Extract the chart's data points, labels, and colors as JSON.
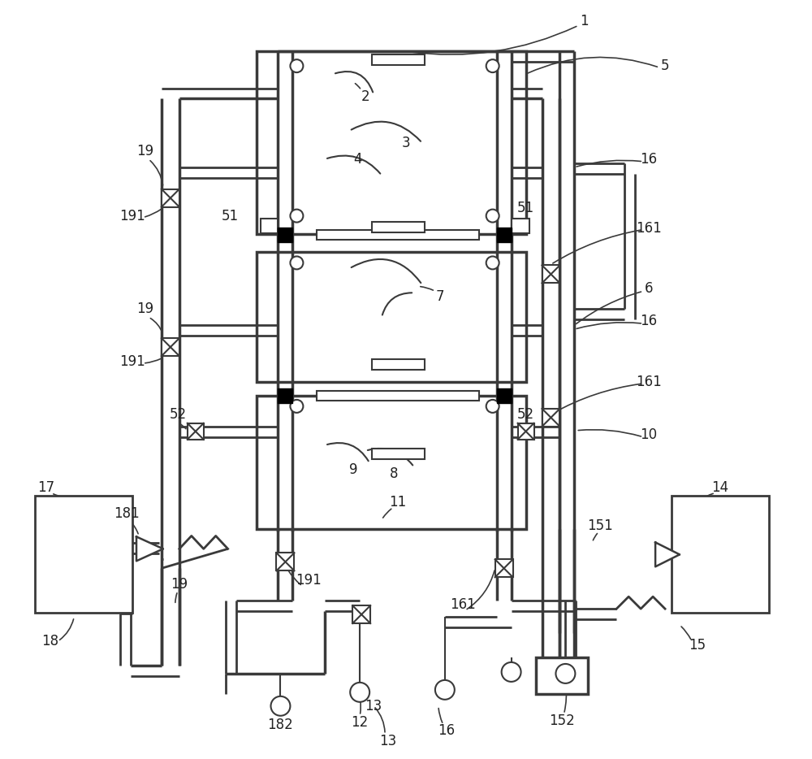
{
  "bg_color": "#ffffff",
  "lc": "#3a3a3a",
  "lfs": 12,
  "labc": "#222222"
}
